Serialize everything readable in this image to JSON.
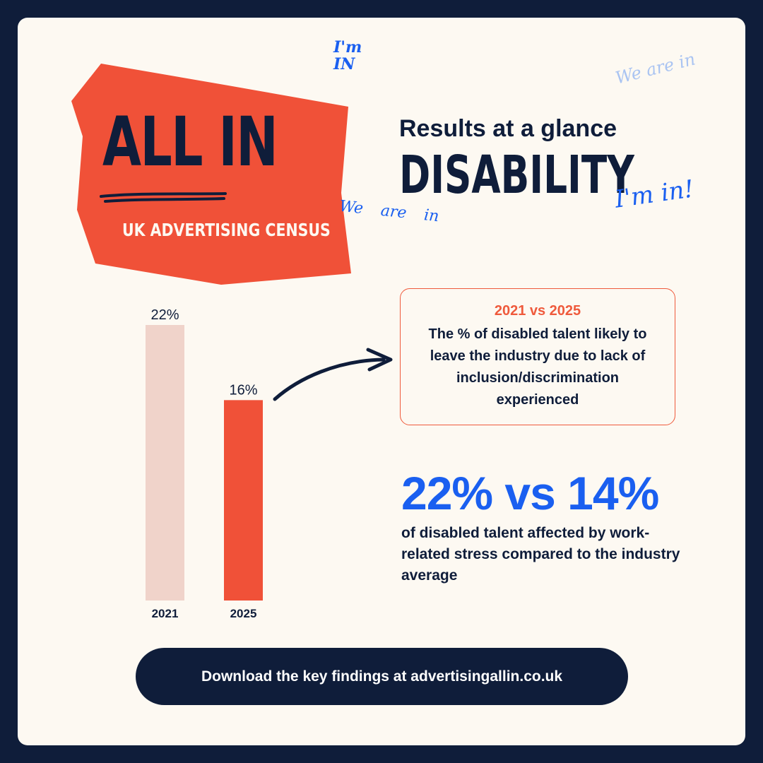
{
  "logo": {
    "title": "ALL IN",
    "subtitle": "UK ADVERTISING CENSUS",
    "bg_color": "#f05138"
  },
  "header": {
    "kicker": "Results at a glance",
    "title": "DISABILITY"
  },
  "scribbles": {
    "top_left": "I'm IN",
    "top_right": "We are in",
    "mid_right": "I'm in!",
    "mid_left": "We are in"
  },
  "chart_data": {
    "type": "bar",
    "categories": [
      "2021",
      "2025"
    ],
    "values": [
      22,
      16
    ],
    "value_labels": [
      "22%",
      "16%"
    ],
    "colors": [
      "#f0d3ca",
      "#f05138"
    ],
    "ylim": [
      0,
      22
    ]
  },
  "callout": {
    "title": "2021 vs 2025",
    "text": "The % of disabled talent likely to leave the industry due to lack of inclusion/discrimination experienced"
  },
  "stat": {
    "headline": "22% vs 14%",
    "text": "of disabled talent affected by work-related stress compared to the industry average"
  },
  "cta": {
    "label": "Download the key findings at advertisingallin.co.uk"
  },
  "colors": {
    "navy": "#0f1d3a",
    "coral": "#f05138",
    "blue": "#1a5ff0",
    "cream": "#fdf9f2"
  }
}
